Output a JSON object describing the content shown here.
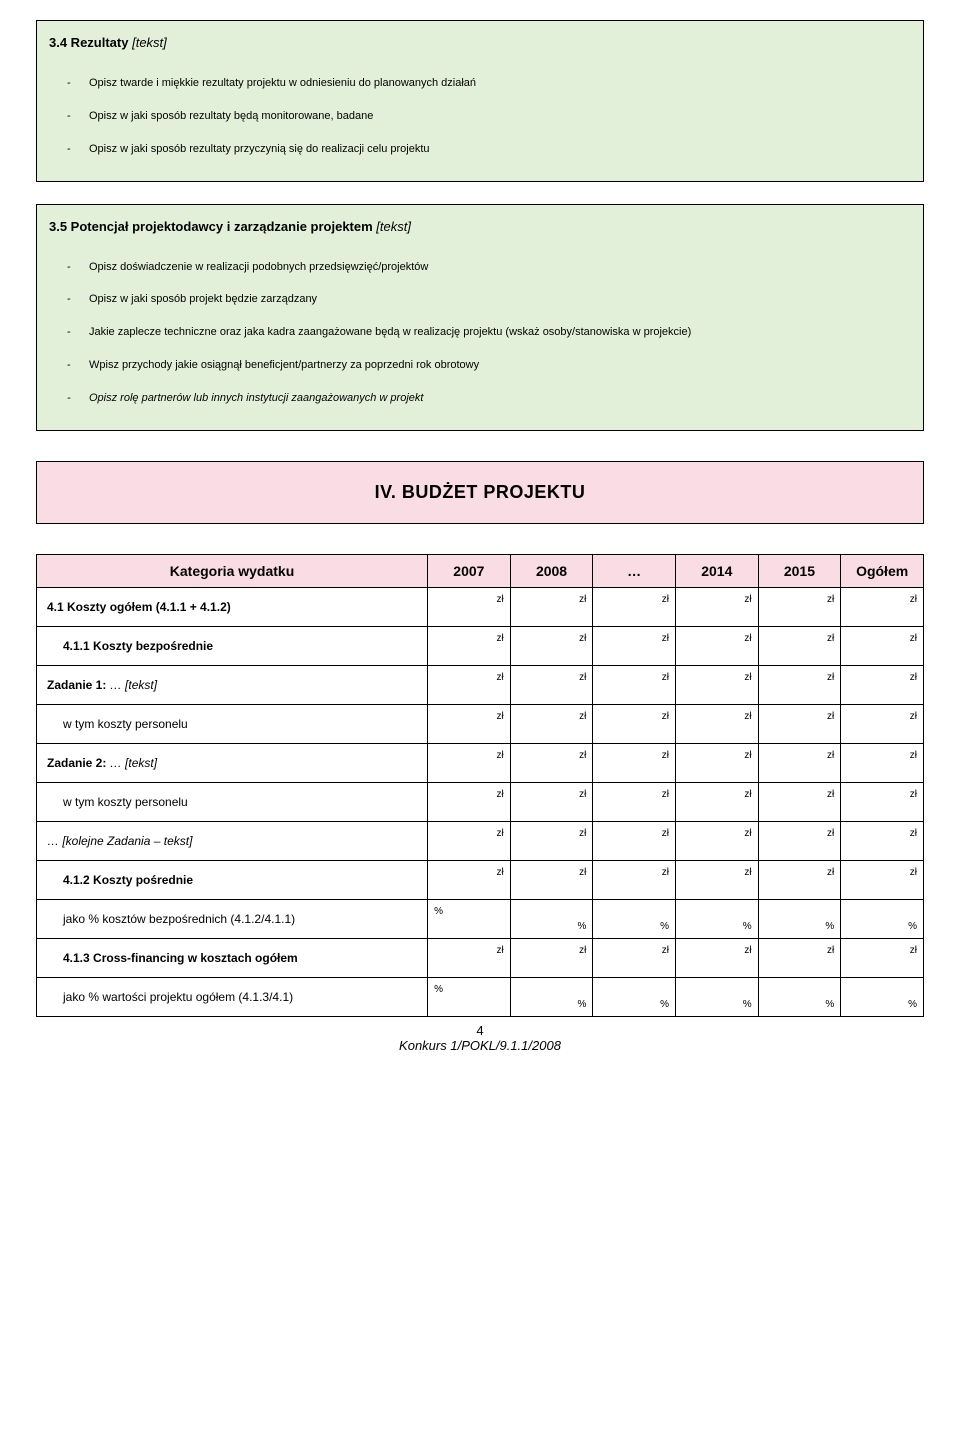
{
  "colors": {
    "box_bg": "#e2f0d9",
    "header_bg": "#fadde4",
    "thead_bg": "#fadde4"
  },
  "box34": {
    "title_main": "3.4 Rezultaty ",
    "title_hint": "[tekst]",
    "items": [
      "Opisz twarde i miękkie rezultaty projektu w odniesieniu do planowanych działań",
      "Opisz w jaki sposób rezultaty będą monitorowane, badane",
      "Opisz w jaki sposób rezultaty przyczynią się do realizacji celu projektu"
    ]
  },
  "box35": {
    "title_main": "3.5 Potencjał projektodawcy i zarządzanie projektem ",
    "title_hint": "[tekst]",
    "items": [
      {
        "text": "Opisz doświadczenie w realizacji podobnych przedsięwzięć/projektów",
        "italic": false
      },
      {
        "text": "Opisz w jaki sposób projekt będzie zarządzany",
        "italic": false
      },
      {
        "text": "Jakie zaplecze techniczne oraz jaka kadra zaangażowane będą w realizację projektu (wskaż osoby/stanowiska w projekcie)",
        "italic": false
      },
      {
        "text": "Wpisz przychody jakie osiągnął beneficjent/partnerzy za poprzedni rok obrotowy",
        "italic": false
      },
      {
        "text": "Opisz rolę partnerów lub innych instytucji zaangażowanych w projekt",
        "italic": true
      }
    ]
  },
  "section4_title": "IV. BUDŻET PROJEKTU",
  "budget": {
    "header_category": "Kategoria wydatku",
    "columns": [
      "2007",
      "2008",
      "…",
      "2014",
      "2015",
      "Ogółem"
    ],
    "rows": [
      {
        "label": "4.1 Koszty ogółem (4.1.1 + 4.1.2)",
        "bold": true,
        "italic": false,
        "indent": 0,
        "hint": "",
        "type": "zl"
      },
      {
        "label": "4.1.1 Koszty bezpośrednie",
        "bold": true,
        "italic": false,
        "indent": 1,
        "hint": "",
        "type": "zl"
      },
      {
        "label": "Zadanie 1: ",
        "bold": true,
        "italic": false,
        "indent": 0,
        "hint": "… [tekst]",
        "type": "zl"
      },
      {
        "label": "w tym koszty personelu",
        "bold": false,
        "italic": false,
        "indent": 1,
        "hint": "",
        "type": "zl"
      },
      {
        "label": "Zadanie 2: ",
        "bold": true,
        "italic": false,
        "indent": 0,
        "hint": "… [tekst]",
        "type": "zl"
      },
      {
        "label": "w tym koszty personelu",
        "bold": false,
        "italic": false,
        "indent": 1,
        "hint": "",
        "type": "zl"
      },
      {
        "label": "… [kolejne Zadania – tekst]",
        "bold": false,
        "italic": true,
        "indent": 0,
        "hint": "",
        "type": "zl"
      },
      {
        "label": "4.1.2 Koszty pośrednie",
        "bold": true,
        "italic": false,
        "indent": 1,
        "hint": "",
        "type": "zl"
      },
      {
        "label": "jako % kosztów bezpośrednich (4.1.2/4.1.1)",
        "bold": false,
        "italic": false,
        "indent": 1,
        "hint": "",
        "type": "pct"
      },
      {
        "label": "4.1.3 Cross-financing w kosztach ogółem",
        "bold": true,
        "italic": false,
        "indent": 1,
        "hint": "",
        "type": "zl"
      },
      {
        "label": "jako % wartości projektu ogółem (4.1.3/4.1)",
        "bold": false,
        "italic": false,
        "indent": 1,
        "hint": "",
        "type": "pct"
      }
    ],
    "zl_unit": "zł",
    "pct_unit": "%"
  },
  "footer": {
    "page": "4",
    "doc": "Konkurs 1/POKL/9.1.1/2008"
  }
}
